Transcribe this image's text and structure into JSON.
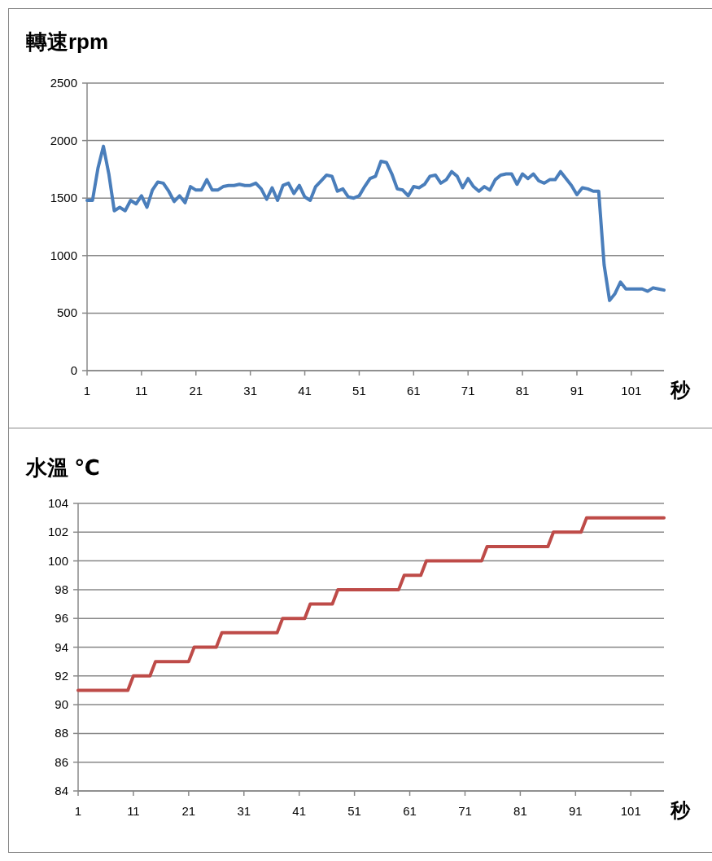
{
  "chart_data": [
    {
      "type": "line",
      "title": "轉速rpm",
      "xlabel": "秒",
      "grid": "y",
      "ylim": [
        0,
        2500
      ],
      "yticks": [
        0,
        500,
        1000,
        1500,
        2000,
        2500
      ],
      "categories": [
        "1",
        null,
        null,
        null,
        null,
        null,
        null,
        null,
        null,
        null,
        "11",
        null,
        null,
        null,
        null,
        null,
        null,
        null,
        null,
        null,
        "21",
        null,
        null,
        null,
        null,
        null,
        null,
        null,
        null,
        null,
        "31",
        null,
        null,
        null,
        null,
        null,
        null,
        null,
        null,
        null,
        "41",
        null,
        null,
        null,
        null,
        null,
        null,
        null,
        null,
        null,
        "51",
        null,
        null,
        null,
        null,
        null,
        null,
        null,
        null,
        null,
        "61",
        null,
        null,
        null,
        null,
        null,
        null,
        null,
        null,
        null,
        "71",
        null,
        null,
        null,
        null,
        null,
        null,
        null,
        null,
        null,
        "81",
        null,
        null,
        null,
        null,
        null,
        null,
        null,
        null,
        null,
        "91",
        null,
        null,
        null,
        null,
        null,
        null,
        null,
        null,
        null,
        "101",
        null,
        null,
        null,
        null,
        null,
        null
      ],
      "series": [
        {
          "color": "#4a7ebb",
          "values": [
            1480,
            1480,
            1760,
            1950,
            1710,
            1390,
            1420,
            1390,
            1480,
            1450,
            1520,
            1420,
            1570,
            1640,
            1630,
            1560,
            1470,
            1520,
            1460,
            1600,
            1570,
            1570,
            1660,
            1570,
            1570,
            1600,
            1610,
            1610,
            1620,
            1610,
            1610,
            1630,
            1580,
            1490,
            1590,
            1480,
            1610,
            1630,
            1540,
            1610,
            1510,
            1480,
            1600,
            1650,
            1700,
            1690,
            1560,
            1580,
            1510,
            1500,
            1520,
            1600,
            1670,
            1690,
            1820,
            1810,
            1710,
            1580,
            1570,
            1520,
            1600,
            1590,
            1620,
            1690,
            1700,
            1630,
            1660,
            1730,
            1690,
            1590,
            1670,
            1600,
            1560,
            1600,
            1570,
            1660,
            1700,
            1710,
            1710,
            1620,
            1710,
            1670,
            1710,
            1650,
            1630,
            1660,
            1660,
            1730,
            1670,
            1610,
            1530,
            1590,
            1580,
            1560,
            1560,
            920,
            610,
            670,
            770,
            710,
            710,
            710,
            710,
            690,
            720,
            710,
            700
          ]
        }
      ]
    },
    {
      "type": "line",
      "title": "水溫 ℃",
      "xlabel": "秒",
      "grid": "y",
      "ylim": [
        84,
        104
      ],
      "yticks": [
        84,
        86,
        88,
        90,
        92,
        94,
        96,
        98,
        100,
        102,
        104
      ],
      "categories": [
        "1",
        null,
        null,
        null,
        null,
        null,
        null,
        null,
        null,
        null,
        "11",
        null,
        null,
        null,
        null,
        null,
        null,
        null,
        null,
        null,
        "21",
        null,
        null,
        null,
        null,
        null,
        null,
        null,
        null,
        null,
        "31",
        null,
        null,
        null,
        null,
        null,
        null,
        null,
        null,
        null,
        "41",
        null,
        null,
        null,
        null,
        null,
        null,
        null,
        null,
        null,
        "51",
        null,
        null,
        null,
        null,
        null,
        null,
        null,
        null,
        null,
        "61",
        null,
        null,
        null,
        null,
        null,
        null,
        null,
        null,
        null,
        "71",
        null,
        null,
        null,
        null,
        null,
        null,
        null,
        null,
        null,
        "81",
        null,
        null,
        null,
        null,
        null,
        null,
        null,
        null,
        null,
        "91",
        null,
        null,
        null,
        null,
        null,
        null,
        null,
        null,
        null,
        "101",
        null,
        null,
        null,
        null,
        null,
        null
      ],
      "series": [
        {
          "color": "#be4b48",
          "values": [
            91,
            91,
            91,
            91,
            91,
            91,
            91,
            91,
            91,
            91,
            92,
            92,
            92,
            92,
            93,
            93,
            93,
            93,
            93,
            93,
            93,
            94,
            94,
            94,
            94,
            94,
            95,
            95,
            95,
            95,
            95,
            95,
            95,
            95,
            95,
            95,
            95,
            96,
            96,
            96,
            96,
            96,
            97,
            97,
            97,
            97,
            97,
            98,
            98,
            98,
            98,
            98,
            98,
            98,
            98,
            98,
            98,
            98,
            98,
            99,
            99,
            99,
            99,
            100,
            100,
            100,
            100,
            100,
            100,
            100,
            100,
            100,
            100,
            100,
            101,
            101,
            101,
            101,
            101,
            101,
            101,
            101,
            101,
            101,
            101,
            101,
            102,
            102,
            102,
            102,
            102,
            102,
            103,
            103,
            103,
            103,
            103,
            103,
            103,
            103,
            103,
            103,
            103,
            103,
            103,
            103,
            103
          ]
        }
      ]
    }
  ]
}
